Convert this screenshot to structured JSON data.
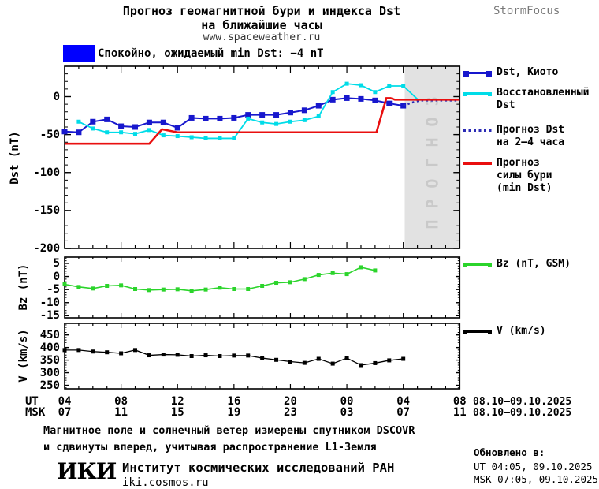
{
  "header": {
    "title_line1": "Прогноз геомагнитной бури и индекса Dst",
    "title_line2": "на ближайшие часы",
    "site_url": "www.spaceweather.ru",
    "brand": "StormFocus"
  },
  "status_banner": {
    "swatch_color": "#0000ff",
    "text": "Спокойно, ожидаемый min Dst: −4 nT"
  },
  "forecast_overlay": {
    "label": "ПРОГНОЗ",
    "bg_color": "#e2e2e2",
    "text_color": "#c9c9c9",
    "start_hour_ut": 28.1
  },
  "legend_main": {
    "kyoto": {
      "label": "Dst, Киото",
      "color": "#1717cd",
      "style": "line-squares"
    },
    "restored": {
      "label": "Восстановленный\nDst",
      "color": "#00dce8",
      "style": "line-small-squares"
    },
    "forecast_dst": {
      "label": "Прогноз Dst\nна 2–4 часа",
      "color": "#2b2bb5",
      "style": "dotted"
    },
    "storm_forecast": {
      "label": "Прогноз\nсилы бури\n(min Dst)",
      "color": "#e90f0f",
      "style": "line"
    }
  },
  "legend_bz": {
    "label": "Bz (nT, GSM)",
    "color": "#2bd42b",
    "style": "line-small-squares"
  },
  "legend_v": {
    "label": "V (km/s)",
    "color": "#000000",
    "style": "line-small-squares"
  },
  "xaxis": {
    "ut_row_label": "UT",
    "msk_row_label": "MSK",
    "ut_ticks": [
      "04",
      "08",
      "12",
      "16",
      "20",
      "00",
      "04",
      "08"
    ],
    "msk_ticks": [
      "07",
      "11",
      "15",
      "19",
      "23",
      "03",
      "07",
      "11"
    ],
    "ut_date_range": "08.10–09.10.2025",
    "msk_date_range": "08.10–09.10.2025"
  },
  "footer": {
    "note_line1": "Магнитное поле и солнечный ветер измерены спутником DSCOVR",
    "note_line2": "и сдвинуты вперед, учитывая распространение L1-Земля",
    "institute_logo": "ИКИ",
    "institute_name": "Институт космических исследований РАН",
    "institute_url": "iki.cosmos.ru",
    "updated_title": "Обновлено в:",
    "updated_ut": "UT  04:05, 09.10.2025",
    "updated_msk": "MSK 07:05, 09.10.2025"
  },
  "chart_data": [
    {
      "type": "line",
      "panel": "dst",
      "ylabel": "Dst (nT)",
      "yticks": [
        0,
        -50,
        -100,
        -150,
        -200
      ],
      "ylim": [
        -200,
        40
      ],
      "x_hours_ut_range": [
        4,
        32
      ],
      "grid": false,
      "legend_position": "right",
      "series": [
        {
          "name": "Dst, Киото",
          "color": "#1717cd",
          "style": "solid",
          "marker": "square",
          "marker_size": 7,
          "width": 2,
          "x": [
            4,
            5,
            6,
            7,
            8,
            9,
            10,
            11,
            12,
            13,
            14,
            15,
            16,
            17,
            18,
            19,
            20,
            21,
            22,
            23,
            24,
            25,
            26,
            27,
            28
          ],
          "values": [
            -46,
            -47,
            -33,
            -30,
            -39,
            -40,
            -34,
            -34,
            -41,
            -28,
            -29,
            -29,
            -28,
            -24,
            -24,
            -24,
            -21,
            -18,
            -12,
            -4,
            -2,
            -3,
            -5,
            -9,
            -12
          ]
        },
        {
          "name": "Восстановленный Dst",
          "color": "#00dce8",
          "style": "solid",
          "marker": "square",
          "marker_size": 5,
          "width": 1.8,
          "unmarked_tail": 1,
          "x": [
            5,
            6,
            7,
            8,
            9,
            10,
            11,
            12,
            13,
            14,
            15,
            16,
            17,
            18,
            19,
            20,
            21,
            22,
            23,
            24,
            25,
            26,
            27,
            28,
            29.1
          ],
          "values": [
            -33,
            -42,
            -47,
            -47,
            -49,
            -44,
            -51,
            -52,
            -53.5,
            -55,
            -55,
            -55,
            -29,
            -34,
            -36,
            -33,
            -31,
            -26,
            6,
            17,
            15,
            6,
            14,
            14,
            -5
          ]
        },
        {
          "name": "Прогноз Dst на 2–4 часа",
          "color": "#2b2bb5",
          "style": "dotted",
          "marker": null,
          "width": 2.6,
          "x": [
            28.0,
            28.6,
            29.2,
            32
          ],
          "values": [
            -12,
            -8,
            -5,
            -5
          ]
        },
        {
          "name": "Прогноз силы бури (min Dst)",
          "color": "#e90f0f",
          "style": "solid",
          "marker": null,
          "width": 2.6,
          "x": [
            4,
            10.0,
            10.9,
            12,
            26.1,
            26.8,
            27.1,
            27.4,
            32
          ],
          "values": [
            -62,
            -62,
            -43,
            -47,
            -47,
            -2,
            -2,
            -4,
            -4
          ]
        }
      ]
    },
    {
      "type": "line",
      "panel": "bz",
      "ylabel": "Bz (nT)",
      "yticks": [
        5,
        0,
        -5,
        -10,
        -15
      ],
      "ylim": [
        -15.8,
        7.4
      ],
      "grid": false,
      "series": [
        {
          "name": "Bz (nT, GSM)",
          "color": "#2bd42b",
          "style": "solid",
          "marker": "square",
          "marker_size": 5,
          "width": 1.6,
          "x": [
            4,
            5,
            6,
            7,
            8,
            9,
            10,
            11,
            12,
            13,
            14,
            15,
            16,
            17,
            18,
            19,
            20,
            21,
            22,
            23,
            24,
            25,
            26
          ],
          "values": [
            -3,
            -4,
            -4.6,
            -3.6,
            -3.4,
            -4.8,
            -5.2,
            -5,
            -4.9,
            -5.5,
            -5,
            -4.3,
            -4.8,
            -4.8,
            -3.6,
            -2.4,
            -2.2,
            -1,
            0.6,
            1.3,
            0.9,
            3.5,
            2.3
          ]
        }
      ]
    },
    {
      "type": "line",
      "panel": "v",
      "ylabel": "V (km/s)",
      "yticks": [
        450,
        400,
        350,
        300,
        250
      ],
      "ylim": [
        236,
        496
      ],
      "grid": false,
      "series": [
        {
          "name": "V (km/s)",
          "color": "#000000",
          "style": "solid",
          "marker": "square",
          "marker_size": 5,
          "width": 1.3,
          "x": [
            4,
            5,
            6,
            7,
            8,
            9,
            10,
            11,
            12,
            13,
            14,
            15,
            16,
            17,
            18,
            19,
            20,
            21,
            22,
            23,
            24,
            25,
            26,
            27,
            28
          ],
          "values": [
            390,
            390,
            384,
            381,
            377,
            390,
            369,
            372,
            371,
            366,
            369,
            366,
            368,
            368,
            358,
            351,
            344,
            339,
            355,
            336,
            358,
            330,
            338,
            349,
            355
          ]
        }
      ]
    }
  ]
}
